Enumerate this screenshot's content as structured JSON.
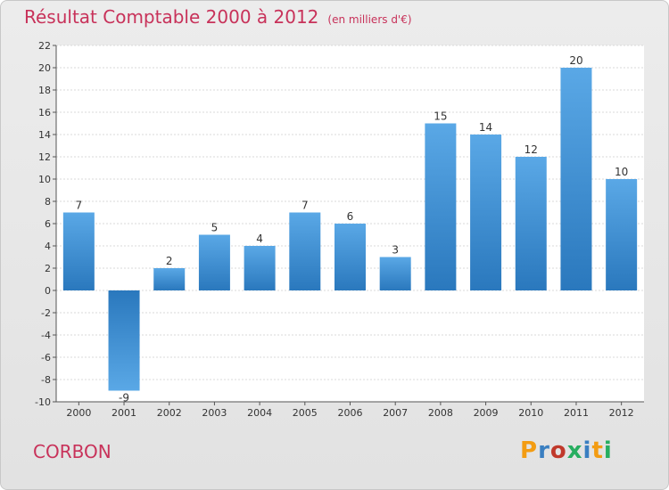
{
  "chart_data": {
    "type": "bar",
    "title": "Résultat Comptable 2000 à 2012",
    "subtitle": "(en milliers d'€)",
    "categories": [
      "2000",
      "2001",
      "2002",
      "2003",
      "2004",
      "2005",
      "2006",
      "2007",
      "2008",
      "2009",
      "2010",
      "2011",
      "2012"
    ],
    "values": [
      7,
      -9,
      2,
      5,
      4,
      7,
      6,
      3,
      15,
      14,
      12,
      20,
      10
    ],
    "ylim": [
      -10,
      22
    ],
    "yticks": [
      -10,
      -8,
      -6,
      -4,
      -2,
      0,
      2,
      4,
      6,
      8,
      10,
      12,
      14,
      16,
      18,
      20,
      22
    ],
    "xlabel": "",
    "ylabel": "",
    "grid": true,
    "bar_color_light": "#5aa8e6",
    "bar_color_dark": "#2a78bd"
  },
  "footer": {
    "city": "CORBON",
    "logo": "Proxiti"
  },
  "colors": {
    "title": "#c8325a",
    "logo_letters": [
      "#f39c12",
      "#3a7fc1",
      "#c0392b",
      "#27ae60",
      "#3a7fc1",
      "#f39c12",
      "#27ae60"
    ]
  }
}
